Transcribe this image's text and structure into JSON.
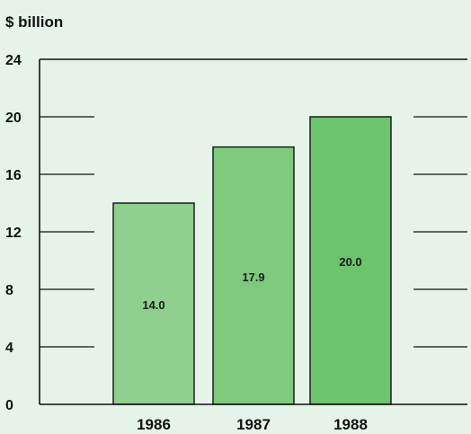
{
  "chart_data": {
    "type": "bar",
    "title": "",
    "unit_label": "$ billion",
    "xlabel": "",
    "ylabel": "",
    "categories": [
      "1986",
      "1987",
      "1988"
    ],
    "values": [
      14.0,
      17.9,
      20.0
    ],
    "value_labels": [
      "14.0",
      "17.9",
      "20.0"
    ],
    "ylim": [
      0,
      24
    ],
    "yticks": [
      0,
      4,
      8,
      12,
      16,
      20,
      24
    ],
    "ytick_labels": [
      "0",
      "4",
      "8",
      "12",
      "16",
      "20",
      "24"
    ],
    "grid": true,
    "legend": "none",
    "colors": {
      "plot_background": "#e6f3e8",
      "bars": [
        "#8fd08f",
        "#7dca7d",
        "#6cc46c"
      ],
      "bar_outline": "#111111",
      "axis": "#111111"
    }
  }
}
